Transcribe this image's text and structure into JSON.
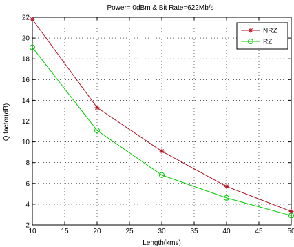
{
  "chart_data": {
    "type": "line",
    "title": "Power= 0dBm & Bit Rate=622Mb/s",
    "xlabel": "Length(kms)",
    "ylabel": "Q.factor(dB)",
    "xlim": [
      10,
      50
    ],
    "ylim": [
      2,
      22
    ],
    "xticks": [
      10,
      15,
      20,
      25,
      30,
      35,
      40,
      45,
      50
    ],
    "yticks": [
      2,
      4,
      6,
      8,
      10,
      12,
      14,
      16,
      18,
      20,
      22
    ],
    "grid": true,
    "legend_position": "top-right",
    "x": [
      10,
      20,
      30,
      40,
      50
    ],
    "series": [
      {
        "name": "NRZ",
        "values": [
          21.8,
          13.3,
          9.1,
          5.7,
          3.3
        ],
        "color": "#b01020",
        "marker": "star"
      },
      {
        "name": "RZ",
        "values": [
          19.1,
          11.1,
          6.8,
          4.6,
          2.9
        ],
        "color": "#00cc00",
        "marker": "circle"
      }
    ]
  }
}
